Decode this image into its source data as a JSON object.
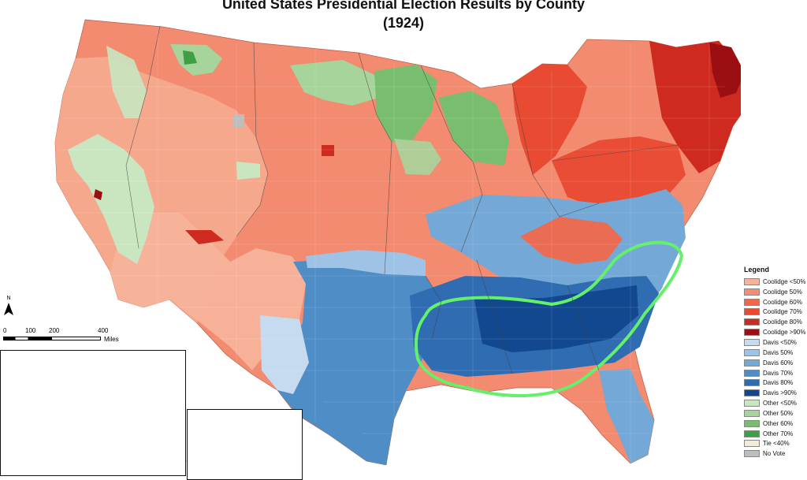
{
  "map": {
    "title_line1": "United States Presidential Election Results by County",
    "title_line2": "(1924)"
  },
  "legend": {
    "title": "Legend",
    "items": [
      {
        "label": "Coolidge <50%",
        "color": "#f7b39a"
      },
      {
        "label": "Coolidge 50%",
        "color": "#f48d71"
      },
      {
        "label": "Coolidge 60%",
        "color": "#f0684c"
      },
      {
        "label": "Coolidge 70%",
        "color": "#e84a32"
      },
      {
        "label": "Coolidge 80%",
        "color": "#cf2a1f"
      },
      {
        "label": "Coolidge >90%",
        "color": "#9b0f12"
      },
      {
        "label": "Davis <50%",
        "color": "#c6daf0"
      },
      {
        "label": "Davis 50%",
        "color": "#9ec3e6"
      },
      {
        "label": "Davis 60%",
        "color": "#74a8d6"
      },
      {
        "label": "Davis 70%",
        "color": "#4f8dc6"
      },
      {
        "label": "Davis 80%",
        "color": "#2f6cb1"
      },
      {
        "label": "Davis >90%",
        "color": "#11488f"
      },
      {
        "label": "Other <50%",
        "color": "#c9e6c1"
      },
      {
        "label": "Other 50%",
        "color": "#a6d49b"
      },
      {
        "label": "Other 60%",
        "color": "#79be6f"
      },
      {
        "label": "Other 70%",
        "color": "#3f9f45"
      },
      {
        "label": "Tie <40%",
        "color": "#f3ead7"
      },
      {
        "label": "No Vote",
        "color": "#bdbdbd"
      }
    ]
  },
  "scale": {
    "ticks": [
      "0",
      "100",
      "200",
      "400"
    ],
    "unit": "Miles"
  },
  "north": {
    "label": "N"
  },
  "highlight": {
    "color": "#63f06a"
  }
}
